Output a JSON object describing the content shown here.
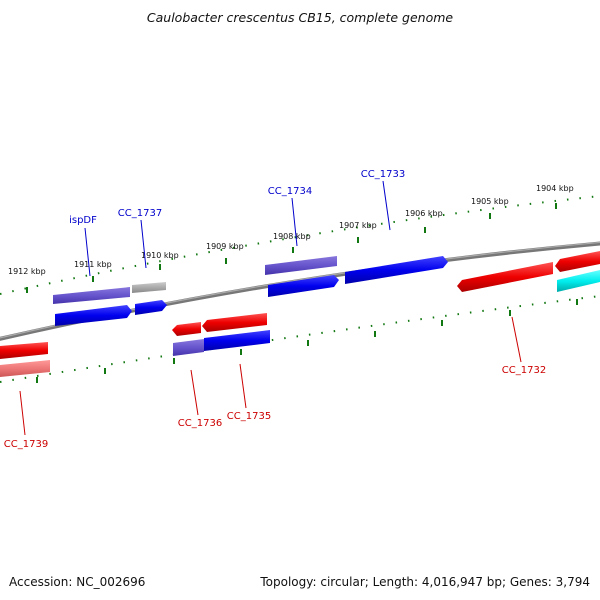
{
  "title": "Caulobacter crescentus CB15, complete genome",
  "footer": {
    "accession": "Accession: NC_002696",
    "summary": "Topology: circular; Length: 4,016,947 bp; Genes: 3,794"
  },
  "colors": {
    "forward": "#0000ee",
    "reverse": "#ee0000",
    "forward_pale": "#6655cc",
    "reverse_pale": "#ee7777",
    "other": "#00eeee",
    "gray": "#aaaaaa",
    "tick": "#117711",
    "backbone": "#888888"
  },
  "scale": {
    "kbp_labels": [
      "1912 kbp",
      "1911 kbp",
      "1910 kbp",
      "1909 kbp",
      "1908 kbp",
      "1907 kbp",
      "1906 kbp",
      "1905 kbp",
      "1904 kbp"
    ]
  },
  "genes": [
    {
      "label": "ispDF",
      "strand": "forward",
      "color": "#0000cc"
    },
    {
      "label": "CC_1737",
      "strand": "forward",
      "color": "#0000cc"
    },
    {
      "label": "CC_1734",
      "strand": "forward",
      "color": "#0000cc"
    },
    {
      "label": "CC_1733",
      "strand": "forward",
      "color": "#0000cc"
    },
    {
      "label": "CC_1739",
      "strand": "reverse",
      "color": "#cc0000"
    },
    {
      "label": "CC_1736",
      "strand": "reverse",
      "color": "#cc0000"
    },
    {
      "label": "CC_1735",
      "strand": "reverse",
      "color": "#cc0000"
    },
    {
      "label": "CC_1732",
      "strand": "reverse",
      "color": "#cc0000"
    }
  ]
}
